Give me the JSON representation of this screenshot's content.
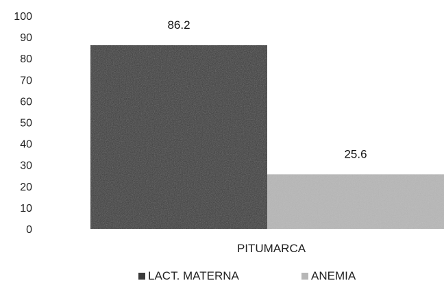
{
  "chart_data": {
    "type": "bar",
    "categories": [
      "PITUMARCA"
    ],
    "series": [
      {
        "name": "LACT. MATERNA",
        "values": [
          86.2
        ],
        "color": "#3b3b3b",
        "data_label": "86.2"
      },
      {
        "name": "ANEMIA",
        "values": [
          25.6
        ],
        "color": "#b7b7b7",
        "data_label": "25.6"
      }
    ],
    "ylim": [
      0,
      100
    ],
    "yticks": [
      "0",
      "10",
      "20",
      "30",
      "40",
      "50",
      "60",
      "70",
      "80",
      "90",
      "100"
    ],
    "grid": false,
    "legend_position": "bottom"
  }
}
